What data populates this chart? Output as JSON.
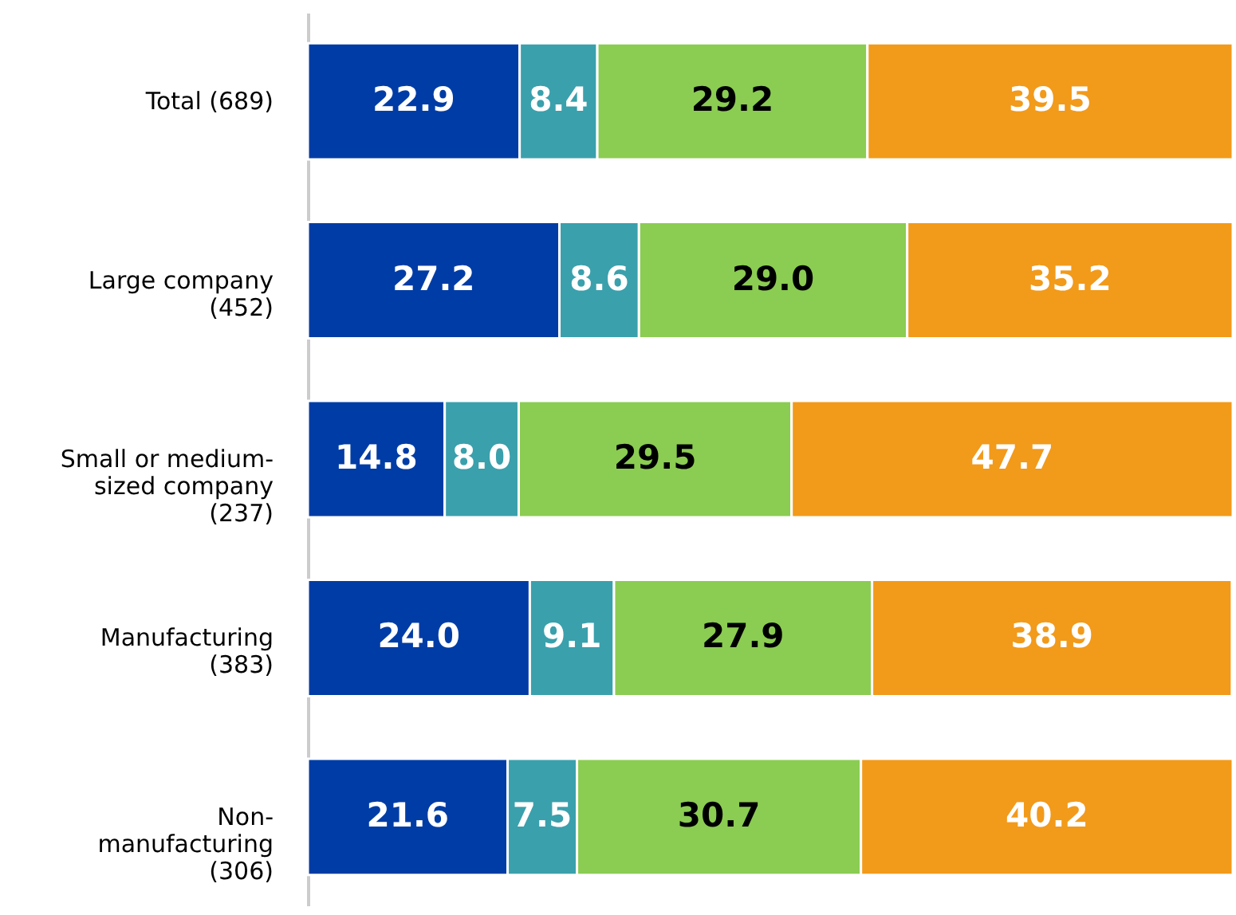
{
  "chart_data": {
    "type": "bar",
    "orientation": "horizontal",
    "stacked": true,
    "grid": false,
    "tick_labels": "y",
    "xlim": [
      0,
      100
    ],
    "categories": [
      "Total (689)",
      "Large company (452)",
      "Small or medium-sized company (237)",
      "Manufacturing (383)",
      "Non-manufacturing (306)"
    ],
    "series": [
      {
        "color": "#003ca5",
        "values": [
          22.9,
          27.2,
          14.8,
          24.0,
          21.6
        ],
        "value_labels": [
          "22.9",
          "27.2",
          "14.8",
          "24.0",
          "21.6"
        ]
      },
      {
        "color": "#3aa0ac",
        "values": [
          8.4,
          8.6,
          8.0,
          9.1,
          7.5
        ],
        "value_labels": [
          "8.4",
          "8.6",
          "8.0",
          "9.1",
          "7.5"
        ]
      },
      {
        "color": "#8bcc52",
        "values": [
          29.2,
          29.0,
          29.5,
          27.9,
          30.7
        ],
        "value_labels": [
          "29.2",
          "29.0",
          "29.5",
          "27.9",
          "30.7"
        ]
      },
      {
        "color": "#f29a1a",
        "values": [
          39.5,
          35.2,
          47.7,
          38.9,
          40.2
        ],
        "value_labels": [
          "39.5",
          "35.2",
          "47.7",
          "38.9",
          "40.2"
        ]
      }
    ]
  }
}
